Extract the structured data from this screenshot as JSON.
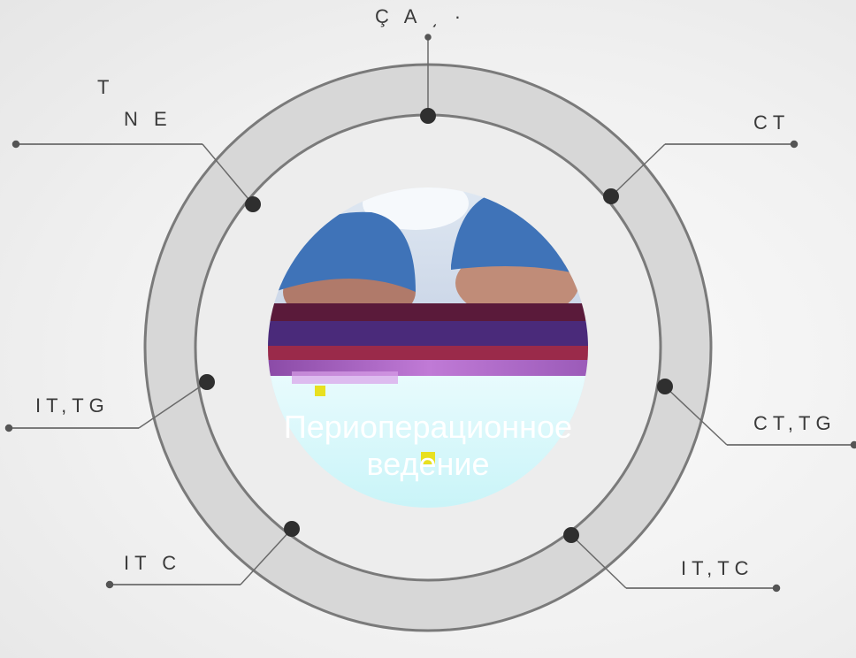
{
  "center": {
    "title_line1": "Периоперационное",
    "title_line2": "ведение"
  },
  "labels": {
    "top": "Ç A ͵ ·",
    "top_left_1": "T",
    "top_left_2": "N E",
    "right_upper": "CT",
    "left_middle": "IT,TG",
    "right_middle": "CT,TG",
    "bottom_left": "IT C",
    "bottom_right": "IT,TC"
  },
  "colors": {
    "ring": "#d6d6d6",
    "ring_stroke": "#7a7a7a",
    "dot": "#2f2f2f",
    "line": "#555555",
    "cap": "#3f73b8"
  }
}
